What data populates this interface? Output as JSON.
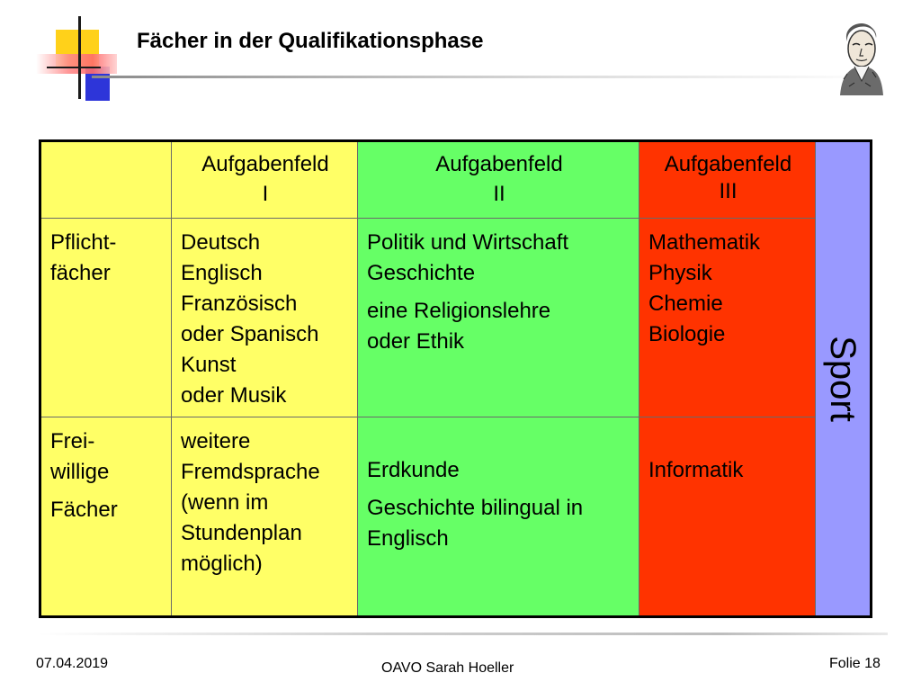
{
  "header": {
    "title": "Fächer in der Qualifikationsphase",
    "decor_colors": {
      "yellow": "#ffd11a",
      "red": "#ff6b6b",
      "blue": "#2d35d9"
    }
  },
  "table": {
    "header_row": {
      "field_1": {
        "line1": "Aufgabenfeld",
        "line2": "I"
      },
      "field_2": {
        "line1": "Aufgabenfeld",
        "line2": "II"
      },
      "field_3": {
        "line1": "Aufgabenfeld",
        "line2": "III"
      }
    },
    "sport_label": "Sport",
    "rows": [
      {
        "label_lines": [
          "Pflicht-",
          "fächer"
        ],
        "field_1": [
          "Deutsch",
          "Englisch",
          "Französisch",
          "oder Spanisch",
          "Kunst",
          "oder Musik"
        ],
        "field_2": {
          "group1": [
            "Politik und Wirtschaft",
            "Geschichte"
          ],
          "group2": [
            "eine Religionslehre",
            "oder Ethik"
          ]
        },
        "field_3": [
          "Mathematik",
          "Physik",
          "Chemie",
          "Biologie"
        ]
      },
      {
        "label_lines": [
          "Frei-",
          "willige",
          "Fächer"
        ],
        "field_1": [
          "weitere",
          "Fremdsprache",
          "(wenn im",
          "Stundenplan",
          "möglich)"
        ],
        "field_2": {
          "group1": [
            "Erdkunde"
          ],
          "group2": [
            "Geschichte bilingual in",
            "Englisch"
          ]
        },
        "field_3": [
          "Informatik"
        ]
      }
    ],
    "colors": {
      "yellow": "#ffff66",
      "green": "#66ff66",
      "red": "#ff3300",
      "violet": "#9999ff"
    }
  },
  "footer": {
    "date": "07.04.2019",
    "author": "OAVO Sarah Hoeller",
    "slide": "Folie 18"
  },
  "icons": {
    "portrait": "portrait-sketch-icon"
  }
}
